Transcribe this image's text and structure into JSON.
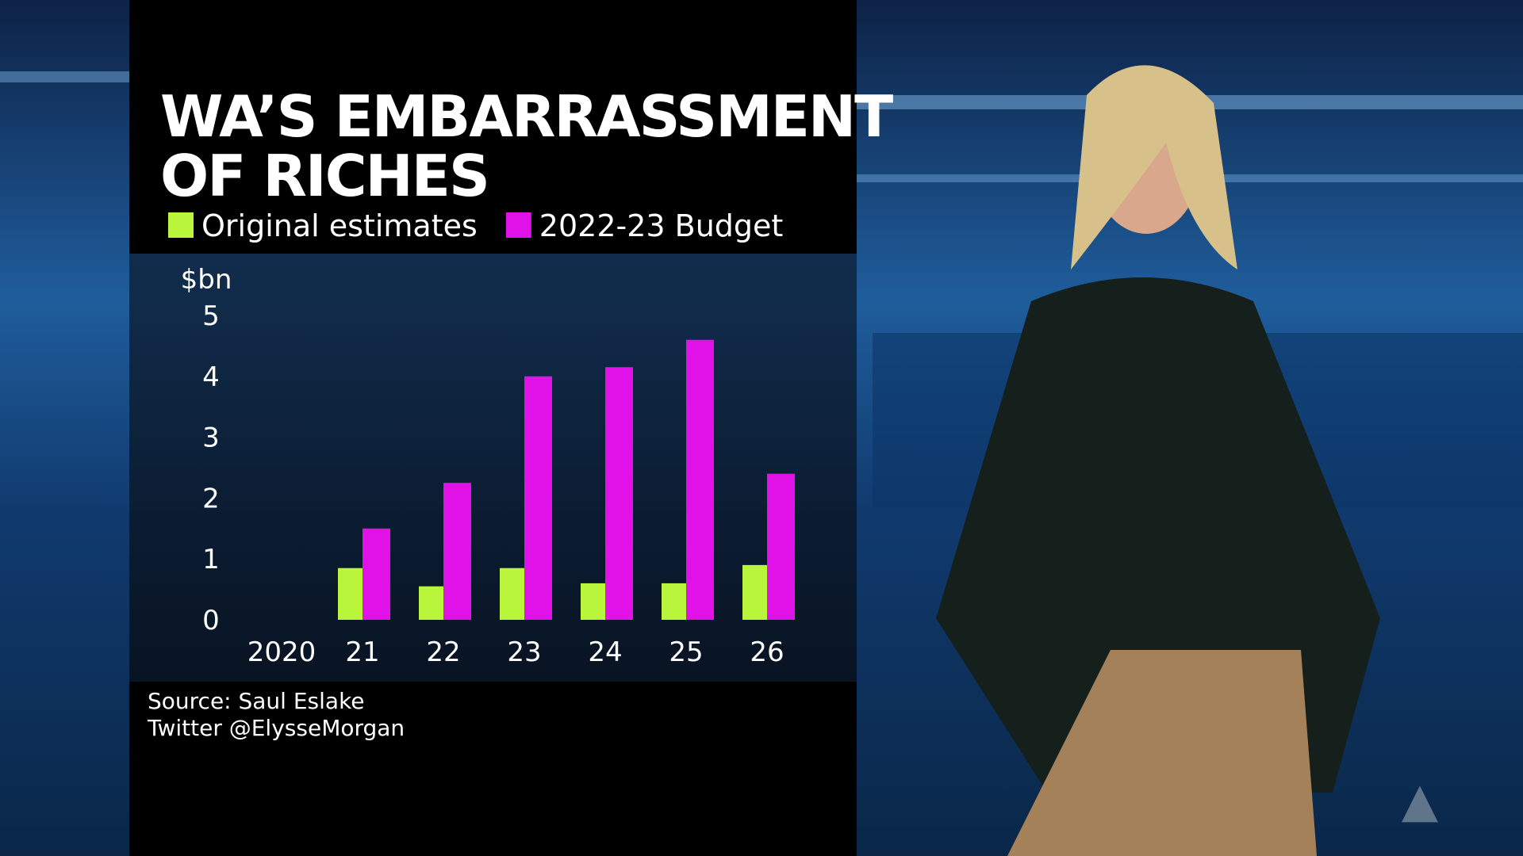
{
  "chart_data": {
    "type": "bar",
    "title_lines": [
      "WA’S EMBARRASSMENT",
      "OF RICHES"
    ],
    "y_label": "$bn",
    "categories": [
      "2020",
      "21",
      "22",
      "23",
      "24",
      "25",
      "26"
    ],
    "series": [
      {
        "name": "Original estimates",
        "color": "#b8f53b",
        "values": [
          null,
          0.85,
          0.55,
          0.85,
          0.6,
          0.6,
          0.9
        ]
      },
      {
        "name": "2022-23 Budget",
        "color": "#e012e8",
        "values": [
          null,
          1.5,
          2.25,
          4.0,
          4.15,
          4.6,
          2.4
        ]
      }
    ],
    "ylim": [
      0,
      5
    ],
    "yticks": [
      0,
      1,
      2,
      3,
      4,
      5
    ],
    "source": "Source: Saul Eslake",
    "credit": "Twitter @ElysseMorgan"
  }
}
